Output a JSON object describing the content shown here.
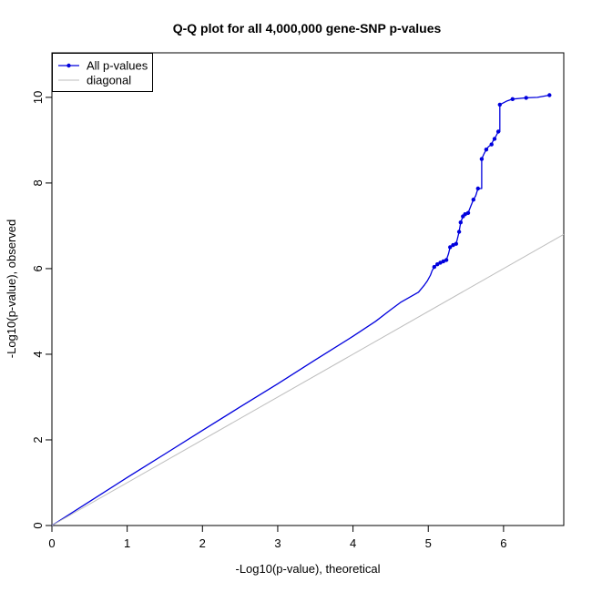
{
  "chart_data": {
    "type": "line",
    "title": "Q-Q plot for all 4,000,000 gene-SNP p-values",
    "xlabel": "-Log10(p-value), theoretical",
    "ylabel": "-Log10(p-value), observed",
    "xlim": [
      0,
      6.8
    ],
    "ylim": [
      0,
      11.04
    ],
    "x_ticks": [
      0,
      1,
      2,
      3,
      4,
      5,
      6
    ],
    "y_ticks": [
      0,
      2,
      4,
      6,
      8,
      10
    ],
    "grid": false,
    "legend_position": "top-left",
    "background_color": "#ffffff",
    "axis_color": "#000000",
    "legend": [
      {
        "label": "All p-values",
        "color": "#0000DD",
        "marker": "dot-on-line"
      },
      {
        "label": "diagonal",
        "color": "#BEBEBE",
        "marker": "line"
      }
    ],
    "series": [
      {
        "name": "All p-values",
        "color": "#0000DD",
        "line_width": 1.3,
        "marker_radius": 2.2,
        "points": [
          [
            0,
            0
          ],
          [
            0.5,
            0.56
          ],
          [
            1,
            1.12
          ],
          [
            1.5,
            1.67
          ],
          [
            2,
            2.22
          ],
          [
            2.5,
            2.77
          ],
          [
            3,
            3.31
          ],
          [
            3.5,
            3.87
          ],
          [
            4,
            4.42
          ],
          [
            4.3,
            4.77
          ],
          [
            4.5,
            5.04
          ],
          [
            4.63,
            5.21
          ],
          [
            4.75,
            5.33
          ],
          [
            4.87,
            5.45
          ],
          [
            4.95,
            5.62
          ],
          [
            4.99,
            5.72
          ],
          [
            5.03,
            5.85
          ],
          [
            5.05,
            5.95
          ],
          [
            5.08,
            6.04
          ],
          [
            5.12,
            6.1
          ],
          [
            5.16,
            6.14
          ],
          [
            5.2,
            6.17
          ],
          [
            5.24,
            6.2
          ],
          [
            5.27,
            6.35
          ],
          [
            5.29,
            6.5
          ],
          [
            5.33,
            6.55
          ],
          [
            5.37,
            6.58
          ],
          [
            5.39,
            6.72
          ],
          [
            5.41,
            6.86
          ],
          [
            5.43,
            7.08
          ],
          [
            5.46,
            7.22
          ],
          [
            5.49,
            7.27
          ],
          [
            5.53,
            7.3
          ],
          [
            5.57,
            7.48
          ],
          [
            5.6,
            7.61
          ],
          [
            5.63,
            7.7
          ],
          [
            5.66,
            7.87
          ],
          [
            5.71,
            7.87
          ],
          [
            5.71,
            8.56
          ],
          [
            5.74,
            8.68
          ],
          [
            5.77,
            8.78
          ],
          [
            5.8,
            8.85
          ],
          [
            5.84,
            8.9
          ],
          [
            5.86,
            8.98
          ],
          [
            5.88,
            9.03
          ],
          [
            5.93,
            9.2
          ],
          [
            5.95,
            9.2
          ],
          [
            5.95,
            9.83
          ],
          [
            6.05,
            9.92
          ],
          [
            6.12,
            9.96
          ],
          [
            6.3,
            9.99
          ],
          [
            6.45,
            10.0
          ],
          [
            6.61,
            10.05
          ]
        ],
        "markers": [
          [
            5.08,
            6.04
          ],
          [
            5.12,
            6.1
          ],
          [
            5.16,
            6.14
          ],
          [
            5.2,
            6.17
          ],
          [
            5.24,
            6.2
          ],
          [
            5.29,
            6.5
          ],
          [
            5.33,
            6.55
          ],
          [
            5.37,
            6.58
          ],
          [
            5.41,
            6.86
          ],
          [
            5.43,
            7.08
          ],
          [
            5.46,
            7.22
          ],
          [
            5.49,
            7.27
          ],
          [
            5.53,
            7.3
          ],
          [
            5.6,
            7.61
          ],
          [
            5.66,
            7.87
          ],
          [
            5.71,
            8.56
          ],
          [
            5.77,
            8.78
          ],
          [
            5.84,
            8.9
          ],
          [
            5.88,
            9.03
          ],
          [
            5.93,
            9.2
          ],
          [
            5.95,
            9.83
          ],
          [
            6.12,
            9.96
          ],
          [
            6.3,
            9.99
          ],
          [
            6.61,
            10.05
          ]
        ]
      },
      {
        "name": "diagonal",
        "color": "#BEBEBE",
        "line_width": 1,
        "points": [
          [
            0,
            0
          ],
          [
            6.8,
            6.8
          ]
        ],
        "markers": []
      }
    ]
  }
}
